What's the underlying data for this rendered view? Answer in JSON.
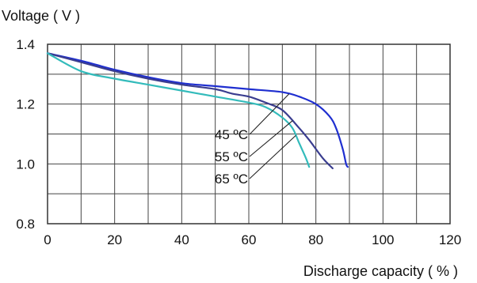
{
  "chart_data": {
    "type": "line",
    "title": "",
    "ylabel": "Voltage ( V )",
    "xlabel": "Discharge capacity ( % )",
    "xlim": [
      0,
      120
    ],
    "ylim": [
      0.8,
      1.4
    ],
    "x_ticks": [
      "0",
      "20",
      "40",
      "60",
      "80",
      "100",
      "120"
    ],
    "y_ticks": [
      "0.8",
      "1.0",
      "1.2",
      "1.4"
    ],
    "grid": true,
    "series": [
      {
        "name": "45 ºC",
        "color": "#1f2fd0",
        "points": [
          [
            0,
            1.37
          ],
          [
            10,
            1.345
          ],
          [
            20,
            1.315
          ],
          [
            30,
            1.29
          ],
          [
            40,
            1.27
          ],
          [
            50,
            1.26
          ],
          [
            60,
            1.25
          ],
          [
            70,
            1.24
          ],
          [
            75,
            1.225
          ],
          [
            80,
            1.2
          ],
          [
            84,
            1.16
          ],
          [
            86,
            1.12
          ],
          [
            88,
            1.05
          ],
          [
            89,
            1.0
          ],
          [
            89.5,
            0.99
          ]
        ]
      },
      {
        "name": "55 ºC",
        "color": "#3a3d8f",
        "points": [
          [
            0,
            1.37
          ],
          [
            10,
            1.34
          ],
          [
            20,
            1.31
          ],
          [
            30,
            1.285
          ],
          [
            40,
            1.265
          ],
          [
            50,
            1.25
          ],
          [
            55,
            1.235
          ],
          [
            60,
            1.225
          ],
          [
            65,
            1.205
          ],
          [
            70,
            1.18
          ],
          [
            75,
            1.12
          ],
          [
            78,
            1.08
          ],
          [
            82,
            1.02
          ],
          [
            85,
            0.985
          ]
        ]
      },
      {
        "name": "65 ºC",
        "color": "#33bbbb",
        "points": [
          [
            0,
            1.37
          ],
          [
            10,
            1.31
          ],
          [
            20,
            1.285
          ],
          [
            30,
            1.265
          ],
          [
            40,
            1.245
          ],
          [
            50,
            1.225
          ],
          [
            60,
            1.205
          ],
          [
            65,
            1.19
          ],
          [
            70,
            1.155
          ],
          [
            73,
            1.12
          ],
          [
            75,
            1.07
          ],
          [
            77,
            1.02
          ],
          [
            78,
            0.99
          ]
        ]
      }
    ],
    "annotations": [
      {
        "label": "45 ºC",
        "series": 0
      },
      {
        "label": "55 ºC",
        "series": 1
      },
      {
        "label": "65 ºC",
        "series": 2
      }
    ]
  }
}
